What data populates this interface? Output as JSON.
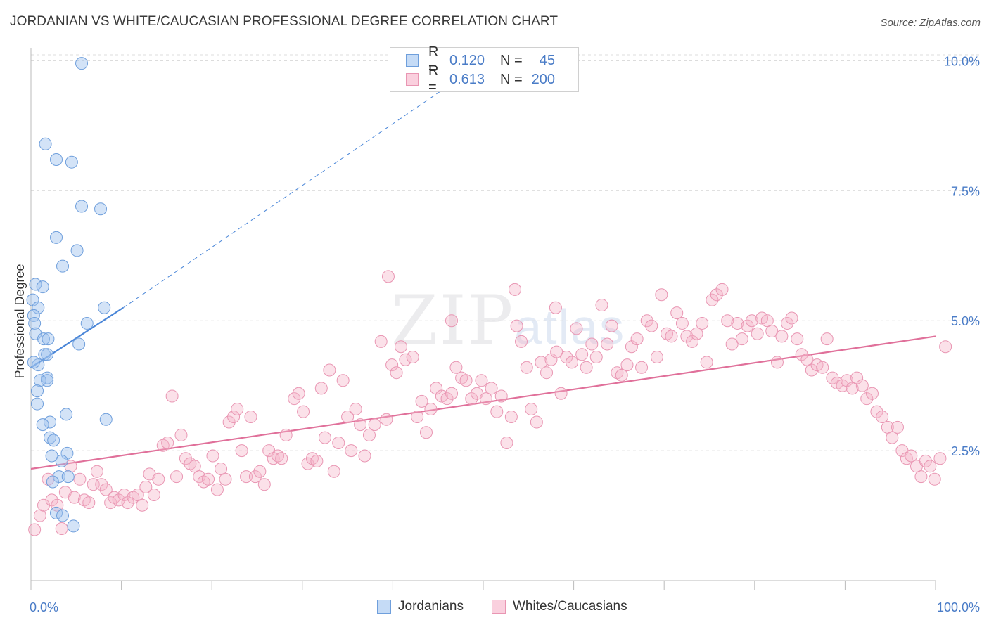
{
  "title": "JORDANIAN VS WHITE/CAUCASIAN PROFESSIONAL DEGREE CORRELATION CHART",
  "source": "Source: ZipAtlas.com",
  "watermark": {
    "zip": "ZIP",
    "atlas": "atlas"
  },
  "legend": {
    "rows": [
      {
        "r_label": "R =",
        "r_value": "0.120",
        "n_label": "N =",
        "n_value": "45",
        "color": "#9ec1ee"
      },
      {
        "r_label": "R =",
        "r_value": "0.613",
        "n_label": "N =",
        "n_value": "200",
        "color": "#f5b3c8"
      }
    ]
  },
  "bottom_legend": [
    {
      "label": "Jordanians",
      "color": "#9ec1ee"
    },
    {
      "label": "Whites/Caucasians",
      "color": "#f5b3c8"
    }
  ],
  "chart_data": {
    "type": "scatter",
    "xlabel": "",
    "ylabel": "Professional Degree",
    "xlim": [
      0,
      100
    ],
    "ylim": [
      0,
      10.25
    ],
    "x_tick_labels": [
      "0.0%",
      "100.0%"
    ],
    "y_ticks": [
      2.5,
      5.0,
      7.5,
      10.0
    ],
    "y_tick_labels": [
      "2.5%",
      "5.0%",
      "7.5%",
      "10.0%"
    ],
    "colors": {
      "jordanians": "#4a86d8",
      "whites": "#e0709a"
    },
    "series": [
      {
        "name": "Jordanians",
        "points": [
          [
            5.6,
            9.95
          ],
          [
            1.6,
            8.4
          ],
          [
            2.8,
            8.1
          ],
          [
            4.5,
            8.05
          ],
          [
            5.6,
            7.2
          ],
          [
            7.7,
            7.15
          ],
          [
            2.8,
            6.6
          ],
          [
            5.1,
            6.35
          ],
          [
            3.5,
            6.05
          ],
          [
            0.5,
            5.7
          ],
          [
            1.3,
            5.65
          ],
          [
            0.2,
            5.4
          ],
          [
            0.8,
            5.25
          ],
          [
            8.1,
            5.25
          ],
          [
            0.3,
            5.1
          ],
          [
            0.4,
            4.95
          ],
          [
            6.2,
            4.95
          ],
          [
            0.5,
            4.75
          ],
          [
            1.4,
            4.65
          ],
          [
            1.9,
            4.65
          ],
          [
            5.3,
            4.55
          ],
          [
            1.5,
            4.35
          ],
          [
            1.8,
            4.35
          ],
          [
            0.8,
            4.15
          ],
          [
            1.8,
            3.9
          ],
          [
            1.0,
            3.85
          ],
          [
            1.8,
            3.85
          ],
          [
            0.7,
            3.65
          ],
          [
            0.7,
            3.4
          ],
          [
            3.9,
            3.2
          ],
          [
            2.1,
            3.05
          ],
          [
            1.3,
            3.0
          ],
          [
            8.3,
            3.1
          ],
          [
            2.1,
            2.75
          ],
          [
            2.5,
            2.7
          ],
          [
            4.0,
            2.45
          ],
          [
            2.3,
            2.4
          ],
          [
            3.4,
            2.3
          ],
          [
            3.1,
            2.0
          ],
          [
            4.1,
            2.0
          ],
          [
            2.4,
            1.9
          ],
          [
            2.8,
            1.3
          ],
          [
            3.5,
            1.25
          ],
          [
            4.7,
            1.05
          ],
          [
            0.3,
            4.2
          ]
        ]
      },
      {
        "name": "Whites/Caucasians",
        "points": [
          [
            0.4,
            0.98
          ],
          [
            1.0,
            1.25
          ],
          [
            1.4,
            1.45
          ],
          [
            1.9,
            1.95
          ],
          [
            2.3,
            1.55
          ],
          [
            2.9,
            1.45
          ],
          [
            3.4,
            1.0
          ],
          [
            3.8,
            1.7
          ],
          [
            4.4,
            2.2
          ],
          [
            4.8,
            1.6
          ],
          [
            5.4,
            1.95
          ],
          [
            5.9,
            1.55
          ],
          [
            6.4,
            1.5
          ],
          [
            6.9,
            1.85
          ],
          [
            7.3,
            2.1
          ],
          [
            7.8,
            1.85
          ],
          [
            8.3,
            1.75
          ],
          [
            8.8,
            1.5
          ],
          [
            9.2,
            1.6
          ],
          [
            9.7,
            1.55
          ],
          [
            10.3,
            1.65
          ],
          [
            10.7,
            1.5
          ],
          [
            11.3,
            1.6
          ],
          [
            11.8,
            1.65
          ],
          [
            12.3,
            1.45
          ],
          [
            12.7,
            1.8
          ],
          [
            13.1,
            2.05
          ],
          [
            13.6,
            1.65
          ],
          [
            14.1,
            1.95
          ],
          [
            14.6,
            2.6
          ],
          [
            15.1,
            2.65
          ],
          [
            15.6,
            3.55
          ],
          [
            16.1,
            2.0
          ],
          [
            16.6,
            2.8
          ],
          [
            17.1,
            2.35
          ],
          [
            17.6,
            2.25
          ],
          [
            18.1,
            2.2
          ],
          [
            18.6,
            2.0
          ],
          [
            19.1,
            1.9
          ],
          [
            19.6,
            1.95
          ],
          [
            20.1,
            2.4
          ],
          [
            20.6,
            1.75
          ],
          [
            21.0,
            2.15
          ],
          [
            21.5,
            1.95
          ],
          [
            21.9,
            3.05
          ],
          [
            22.4,
            3.15
          ],
          [
            22.8,
            3.3
          ],
          [
            23.3,
            2.5
          ],
          [
            23.8,
            2.0
          ],
          [
            24.3,
            3.15
          ],
          [
            24.8,
            2.0
          ],
          [
            25.3,
            2.1
          ],
          [
            25.8,
            1.85
          ],
          [
            26.3,
            2.5
          ],
          [
            26.8,
            2.35
          ],
          [
            27.3,
            2.4
          ],
          [
            27.7,
            2.35
          ],
          [
            28.2,
            2.8
          ],
          [
            29.1,
            3.5
          ],
          [
            29.6,
            3.6
          ],
          [
            30.1,
            3.25
          ],
          [
            30.6,
            2.25
          ],
          [
            31.1,
            2.35
          ],
          [
            31.6,
            2.3
          ],
          [
            32.1,
            3.7
          ],
          [
            32.5,
            2.75
          ],
          [
            33.0,
            4.05
          ],
          [
            33.5,
            2.1
          ],
          [
            34.0,
            2.65
          ],
          [
            34.5,
            3.85
          ],
          [
            35.0,
            3.15
          ],
          [
            35.4,
            2.5
          ],
          [
            35.9,
            3.3
          ],
          [
            36.4,
            3.0
          ],
          [
            36.9,
            2.4
          ],
          [
            37.4,
            2.8
          ],
          [
            38.0,
            3.0
          ],
          [
            38.7,
            4.6
          ],
          [
            39.3,
            3.1
          ],
          [
            39.9,
            4.15
          ],
          [
            40.4,
            4.0
          ],
          [
            40.9,
            4.5
          ],
          [
            41.4,
            4.25
          ],
          [
            42.2,
            4.3
          ],
          [
            42.7,
            3.15
          ],
          [
            43.2,
            3.45
          ],
          [
            43.7,
            2.85
          ],
          [
            44.2,
            3.3
          ],
          [
            44.8,
            3.7
          ],
          [
            45.4,
            3.55
          ],
          [
            46.0,
            3.5
          ],
          [
            46.5,
            3.6
          ],
          [
            47.0,
            4.1
          ],
          [
            47.6,
            3.9
          ],
          [
            48.1,
            3.85
          ],
          [
            48.7,
            3.5
          ],
          [
            49.3,
            3.6
          ],
          [
            49.8,
            3.85
          ],
          [
            50.3,
            3.5
          ],
          [
            50.9,
            3.7
          ],
          [
            51.5,
            3.25
          ],
          [
            52.0,
            3.55
          ],
          [
            52.6,
            2.65
          ],
          [
            53.1,
            3.15
          ],
          [
            53.7,
            4.9
          ],
          [
            54.2,
            4.6
          ],
          [
            54.8,
            4.1
          ],
          [
            55.3,
            3.3
          ],
          [
            55.9,
            3.05
          ],
          [
            56.4,
            4.2
          ],
          [
            57.0,
            4.0
          ],
          [
            57.5,
            4.25
          ],
          [
            58.1,
            4.4
          ],
          [
            58.6,
            3.6
          ],
          [
            59.2,
            4.3
          ],
          [
            59.8,
            4.2
          ],
          [
            60.3,
            4.85
          ],
          [
            60.9,
            4.35
          ],
          [
            61.4,
            4.1
          ],
          [
            62.0,
            4.55
          ],
          [
            62.5,
            4.3
          ],
          [
            63.1,
            5.3
          ],
          [
            63.7,
            4.55
          ],
          [
            64.2,
            4.9
          ],
          [
            64.8,
            4.0
          ],
          [
            65.3,
            3.95
          ],
          [
            65.9,
            4.15
          ],
          [
            66.4,
            4.5
          ],
          [
            67.0,
            4.65
          ],
          [
            67.5,
            4.1
          ],
          [
            68.1,
            5.0
          ],
          [
            68.6,
            4.9
          ],
          [
            69.2,
            4.3
          ],
          [
            69.7,
            5.5
          ],
          [
            70.3,
            4.75
          ],
          [
            70.8,
            4.7
          ],
          [
            71.4,
            5.15
          ],
          [
            72.0,
            4.95
          ],
          [
            72.5,
            4.7
          ],
          [
            73.1,
            4.6
          ],
          [
            73.6,
            4.75
          ],
          [
            74.2,
            4.95
          ],
          [
            74.7,
            4.2
          ],
          [
            75.3,
            5.4
          ],
          [
            75.8,
            5.5
          ],
          [
            76.4,
            5.6
          ],
          [
            77.0,
            5.0
          ],
          [
            77.5,
            4.55
          ],
          [
            78.1,
            4.95
          ],
          [
            78.6,
            4.65
          ],
          [
            79.2,
            4.9
          ],
          [
            79.7,
            5.0
          ],
          [
            80.3,
            4.75
          ],
          [
            80.8,
            5.05
          ],
          [
            81.4,
            5.0
          ],
          [
            81.9,
            4.8
          ],
          [
            82.5,
            4.2
          ],
          [
            83.0,
            4.7
          ],
          [
            83.6,
            4.95
          ],
          [
            84.1,
            5.05
          ],
          [
            84.7,
            4.65
          ],
          [
            85.2,
            4.35
          ],
          [
            85.8,
            4.25
          ],
          [
            86.3,
            4.05
          ],
          [
            86.9,
            4.15
          ],
          [
            87.5,
            4.1
          ],
          [
            88.0,
            4.65
          ],
          [
            88.6,
            3.9
          ],
          [
            89.1,
            3.8
          ],
          [
            89.7,
            3.75
          ],
          [
            90.2,
            3.85
          ],
          [
            90.8,
            3.7
          ],
          [
            91.3,
            3.9
          ],
          [
            91.9,
            3.75
          ],
          [
            92.4,
            3.5
          ],
          [
            93.0,
            3.6
          ],
          [
            93.5,
            3.25
          ],
          [
            94.1,
            3.15
          ],
          [
            94.7,
            2.95
          ],
          [
            95.2,
            2.75
          ],
          [
            95.8,
            2.95
          ],
          [
            96.3,
            2.5
          ],
          [
            96.8,
            2.35
          ],
          [
            97.3,
            2.4
          ],
          [
            97.9,
            2.2
          ],
          [
            98.4,
            2.0
          ],
          [
            98.9,
            2.3
          ],
          [
            99.4,
            2.2
          ],
          [
            99.9,
            1.95
          ],
          [
            100.5,
            2.35
          ],
          [
            101.1,
            4.5
          ],
          [
            53.5,
            5.6
          ],
          [
            39.5,
            5.85
          ],
          [
            58.0,
            5.25
          ],
          [
            46.5,
            5.0
          ]
        ]
      }
    ],
    "trend_lines": [
      {
        "series": "Jordanians",
        "solid": [
          [
            0,
            4.1
          ],
          [
            10.2,
            5.25
          ]
        ],
        "dashed": [
          [
            10.2,
            5.25
          ],
          [
            46,
            9.5
          ]
        ]
      },
      {
        "series": "Whites/Caucasians",
        "solid": [
          [
            0,
            2.15
          ],
          [
            100,
            4.7
          ]
        ]
      }
    ]
  }
}
